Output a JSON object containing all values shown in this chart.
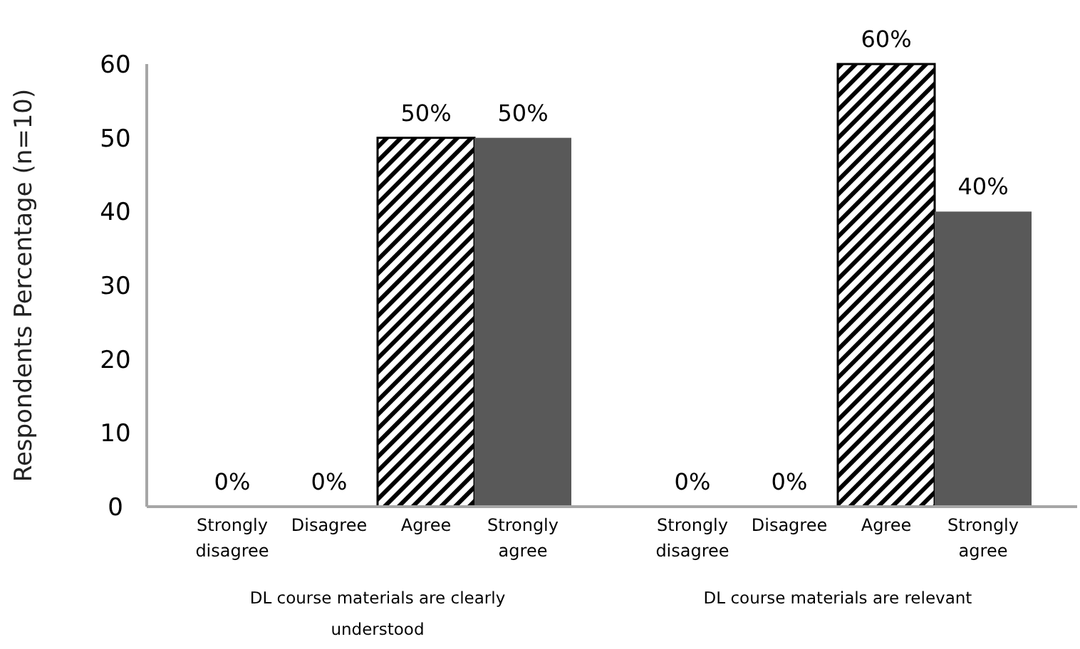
{
  "chart_data": {
    "type": "bar",
    "ylabel": "Respondents Percentage (n=10)",
    "categories": [
      "Strongly disagree",
      "Disagree",
      "Agree",
      "Strongly agree",
      "Strongly disagree",
      "Disagree",
      "Agree",
      "Strongly agree"
    ],
    "values": [
      0,
      0,
      50,
      50,
      0,
      0,
      60,
      40
    ],
    "colors": [
      "#000000",
      "#000000",
      "#000000",
      "#595959",
      "#000000",
      "#000000",
      "#000000",
      "#595959"
    ],
    "value_labels": [
      "0%",
      "0%",
      "50%",
      "50%",
      "0%",
      "0%",
      "60%",
      "40%"
    ],
    "ylim": [
      0,
      60
    ],
    "yticks": [
      0,
      10,
      20,
      30,
      40,
      50,
      60
    ],
    "annotations": [
      "DL course materials are clearly understood",
      "DL course materials are relevant"
    ]
  }
}
